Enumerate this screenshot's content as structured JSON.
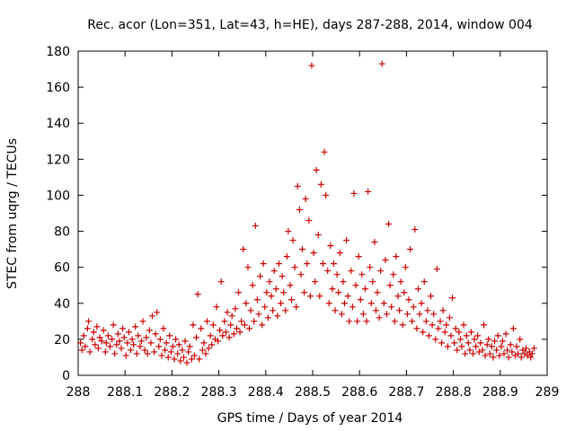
{
  "chart_data": {
    "type": "scatter",
    "title": "Rec. acor (Lon=351, Lat=43, h=HE), days 287-288, 2014, window 004",
    "xlabel": "GPS time / Days of year 2014",
    "ylabel": "STEC from uqrg / TECUs",
    "xlim": [
      288,
      289
    ],
    "ylim": [
      0,
      180
    ],
    "xticks": [
      "288",
      "288.1",
      "288.2",
      "288.3",
      "288.4",
      "288.5",
      "288.6",
      "288.7",
      "288.8",
      "288.9",
      "289"
    ],
    "yticks": [
      "0",
      "20",
      "40",
      "60",
      "80",
      "100",
      "120",
      "140",
      "160",
      "180"
    ],
    "grid": false,
    "marker": "+",
    "color": "#cc0000",
    "series": [
      {
        "name": "STEC",
        "points": [
          [
            288.005,
            18
          ],
          [
            288.008,
            14
          ],
          [
            288.012,
            22
          ],
          [
            288.015,
            16
          ],
          [
            288.02,
            26
          ],
          [
            288.022,
            30
          ],
          [
            288.025,
            13
          ],
          [
            288.03,
            20
          ],
          [
            288.033,
            24
          ],
          [
            288.036,
            17
          ],
          [
            288.04,
            27
          ],
          [
            288.043,
            15
          ],
          [
            288.046,
            21
          ],
          [
            288.05,
            19
          ],
          [
            288.054,
            25
          ],
          [
            288.058,
            13
          ],
          [
            288.06,
            18
          ],
          [
            288.064,
            22
          ],
          [
            288.068,
            16
          ],
          [
            288.072,
            20
          ],
          [
            288.075,
            28
          ],
          [
            288.078,
            12
          ],
          [
            288.082,
            17
          ],
          [
            288.085,
            23
          ],
          [
            288.088,
            19
          ],
          [
            288.092,
            15
          ],
          [
            288.095,
            26
          ],
          [
            288.098,
            21
          ],
          [
            288.102,
            11
          ],
          [
            288.105,
            18
          ],
          [
            288.108,
            24
          ],
          [
            288.112,
            14
          ],
          [
            288.115,
            20
          ],
          [
            288.118,
            17
          ],
          [
            288.122,
            27
          ],
          [
            288.125,
            12
          ],
          [
            288.128,
            22
          ],
          [
            288.132,
            16
          ],
          [
            288.135,
            19
          ],
          [
            288.138,
            30
          ],
          [
            288.142,
            14
          ],
          [
            288.145,
            21
          ],
          [
            288.148,
            12
          ],
          [
            288.152,
            25
          ],
          [
            288.155,
            18
          ],
          [
            288.158,
            33
          ],
          [
            288.162,
            13
          ],
          [
            288.165,
            23
          ],
          [
            288.168,
            35
          ],
          [
            288.172,
            16
          ],
          [
            288.175,
            20
          ],
          [
            288.178,
            11
          ],
          [
            288.182,
            26
          ],
          [
            288.185,
            14
          ],
          [
            288.188,
            18
          ],
          [
            288.192,
            10
          ],
          [
            288.195,
            22
          ],
          [
            288.198,
            13
          ],
          [
            288.202,
            16
          ],
          [
            288.205,
            9
          ],
          [
            288.208,
            20
          ],
          [
            288.212,
            12
          ],
          [
            288.215,
            17
          ],
          [
            288.218,
            8
          ],
          [
            288.222,
            14
          ],
          [
            288.225,
            10
          ],
          [
            288.228,
            19
          ],
          [
            288.232,
            7
          ],
          [
            288.235,
            13
          ],
          [
            288.238,
            16
          ],
          [
            288.242,
            9
          ],
          [
            288.245,
            28
          ],
          [
            288.248,
            11
          ],
          [
            288.252,
            21
          ],
          [
            288.255,
            45
          ],
          [
            288.258,
            9
          ],
          [
            288.262,
            26
          ],
          [
            288.265,
            14
          ],
          [
            288.268,
            18
          ],
          [
            288.272,
            12
          ],
          [
            288.275,
            30
          ],
          [
            288.278,
            15
          ],
          [
            288.282,
            22
          ],
          [
            288.285,
            17
          ],
          [
            288.288,
            28
          ],
          [
            288.292,
            20
          ],
          [
            288.295,
            38
          ],
          [
            288.298,
            19
          ],
          [
            288.302,
            25
          ],
          [
            288.305,
            52
          ],
          [
            288.308,
            22
          ],
          [
            288.312,
            30
          ],
          [
            288.315,
            24
          ],
          [
            288.318,
            35
          ],
          [
            288.322,
            21
          ],
          [
            288.325,
            28
          ],
          [
            288.328,
            33
          ],
          [
            288.332,
            23
          ],
          [
            288.335,
            37
          ],
          [
            288.338,
            26
          ],
          [
            288.342,
            46
          ],
          [
            288.345,
            24
          ],
          [
            288.348,
            30
          ],
          [
            288.352,
            70
          ],
          [
            288.355,
            28
          ],
          [
            288.358,
            40
          ],
          [
            288.362,
            60
          ],
          [
            288.365,
            26
          ],
          [
            288.368,
            36
          ],
          [
            288.372,
            50
          ],
          [
            288.375,
            30
          ],
          [
            288.378,
            83
          ],
          [
            288.382,
            42
          ],
          [
            288.385,
            34
          ],
          [
            288.388,
            55
          ],
          [
            288.392,
            28
          ],
          [
            288.395,
            62
          ],
          [
            288.398,
            38
          ],
          [
            288.402,
            46
          ],
          [
            288.405,
            32
          ],
          [
            288.408,
            52
          ],
          [
            288.412,
            44
          ],
          [
            288.415,
            36
          ],
          [
            288.418,
            58
          ],
          [
            288.422,
            48
          ],
          [
            288.425,
            33
          ],
          [
            288.428,
            62
          ],
          [
            288.432,
            40
          ],
          [
            288.435,
            55
          ],
          [
            288.438,
            46
          ],
          [
            288.442,
            36
          ],
          [
            288.445,
            66
          ],
          [
            288.448,
            80
          ],
          [
            288.452,
            50
          ],
          [
            288.455,
            42
          ],
          [
            288.458,
            75
          ],
          [
            288.462,
            60
          ],
          [
            288.465,
            38
          ],
          [
            288.468,
            105
          ],
          [
            288.472,
            92
          ],
          [
            288.475,
            56
          ],
          [
            288.478,
            70
          ],
          [
            288.482,
            46
          ],
          [
            288.485,
            98
          ],
          [
            288.488,
            62
          ],
          [
            288.492,
            86
          ],
          [
            288.495,
            44
          ],
          [
            288.498,
            172
          ],
          [
            288.502,
            68
          ],
          [
            288.505,
            52
          ],
          [
            288.508,
            114
          ],
          [
            288.512,
            78
          ],
          [
            288.515,
            44
          ],
          [
            288.518,
            106
          ],
          [
            288.522,
            62
          ],
          [
            288.525,
            124
          ],
          [
            288.528,
            100
          ],
          [
            288.532,
            58
          ],
          [
            288.535,
            40
          ],
          [
            288.538,
            72
          ],
          [
            288.542,
            48
          ],
          [
            288.545,
            62
          ],
          [
            288.548,
            36
          ],
          [
            288.552,
            56
          ],
          [
            288.555,
            46
          ],
          [
            288.558,
            68
          ],
          [
            288.562,
            34
          ],
          [
            288.565,
            52
          ],
          [
            288.568,
            40
          ],
          [
            288.572,
            75
          ],
          [
            288.575,
            44
          ],
          [
            288.578,
            30
          ],
          [
            288.582,
            58
          ],
          [
            288.585,
            38
          ],
          [
            288.588,
            101
          ],
          [
            288.592,
            50
          ],
          [
            288.595,
            30
          ],
          [
            288.598,
            66
          ],
          [
            288.602,
            42
          ],
          [
            288.605,
            56
          ],
          [
            288.608,
            34
          ],
          [
            288.612,
            48
          ],
          [
            288.615,
            30
          ],
          [
            288.618,
            102
          ],
          [
            288.622,
            60
          ],
          [
            288.625,
            40
          ],
          [
            288.628,
            52
          ],
          [
            288.632,
            74
          ],
          [
            288.635,
            36
          ],
          [
            288.638,
            46
          ],
          [
            288.642,
            32
          ],
          [
            288.645,
            58
          ],
          [
            288.648,
            173
          ],
          [
            288.652,
            40
          ],
          [
            288.655,
            64
          ],
          [
            288.658,
            34
          ],
          [
            288.662,
            84
          ],
          [
            288.665,
            50
          ],
          [
            288.668,
            38
          ],
          [
            288.672,
            56
          ],
          [
            288.675,
            30
          ],
          [
            288.678,
            66
          ],
          [
            288.682,
            44
          ],
          [
            288.685,
            36
          ],
          [
            288.688,
            52
          ],
          [
            288.692,
            28
          ],
          [
            288.695,
            46
          ],
          [
            288.698,
            60
          ],
          [
            288.702,
            34
          ],
          [
            288.705,
            42
          ],
          [
            288.708,
            70
          ],
          [
            288.712,
            30
          ],
          [
            288.715,
            38
          ],
          [
            288.718,
            81
          ],
          [
            288.722,
            26
          ],
          [
            288.725,
            48
          ],
          [
            288.728,
            34
          ],
          [
            288.732,
            40
          ],
          [
            288.735,
            24
          ],
          [
            288.738,
            52
          ],
          [
            288.742,
            30
          ],
          [
            288.745,
            36
          ],
          [
            288.748,
            22
          ],
          [
            288.752,
            44
          ],
          [
            288.755,
            28
          ],
          [
            288.758,
            34
          ],
          [
            288.762,
            20
          ],
          [
            288.765,
            59
          ],
          [
            288.768,
            26
          ],
          [
            288.772,
            30
          ],
          [
            288.775,
            18
          ],
          [
            288.778,
            36
          ],
          [
            288.782,
            24
          ],
          [
            288.785,
            28
          ],
          [
            288.788,
            16
          ],
          [
            288.792,
            32
          ],
          [
            288.795,
            22
          ],
          [
            288.798,
            43
          ],
          [
            288.802,
            18
          ],
          [
            288.805,
            26
          ],
          [
            288.808,
            14
          ],
          [
            288.812,
            24
          ],
          [
            288.815,
            20
          ],
          [
            288.818,
            16
          ],
          [
            288.822,
            28
          ],
          [
            288.825,
            12
          ],
          [
            288.828,
            22
          ],
          [
            288.832,
            18
          ],
          [
            288.835,
            14
          ],
          [
            288.838,
            24
          ],
          [
            288.842,
            12
          ],
          [
            288.845,
            20
          ],
          [
            288.848,
            16
          ],
          [
            288.852,
            22
          ],
          [
            288.855,
            13
          ],
          [
            288.858,
            18
          ],
          [
            288.862,
            14
          ],
          [
            288.865,
            28
          ],
          [
            288.868,
            11
          ],
          [
            288.872,
            17
          ],
          [
            288.875,
            20
          ],
          [
            288.878,
            12
          ],
          [
            288.882,
            16
          ],
          [
            288.885,
            10
          ],
          [
            288.888,
            19
          ],
          [
            288.892,
            14
          ],
          [
            288.895,
            22
          ],
          [
            288.898,
            11
          ],
          [
            288.902,
            16
          ],
          [
            288.905,
            19
          ],
          [
            288.908,
            12
          ],
          [
            288.912,
            23
          ],
          [
            288.915,
            14
          ],
          [
            288.918,
            10
          ],
          [
            288.922,
            17
          ],
          [
            288.925,
            13
          ],
          [
            288.928,
            26
          ],
          [
            288.932,
            11
          ],
          [
            288.935,
            16
          ],
          [
            288.938,
            12
          ],
          [
            288.942,
            20
          ],
          [
            288.945,
            10
          ],
          [
            288.948,
            14
          ],
          [
            288.952,
            12
          ],
          [
            288.955,
            15
          ],
          [
            288.958,
            11
          ],
          [
            288.962,
            13
          ],
          [
            288.965,
            10
          ],
          [
            288.968,
            12
          ],
          [
            288.972,
            15
          ]
        ]
      }
    ]
  }
}
